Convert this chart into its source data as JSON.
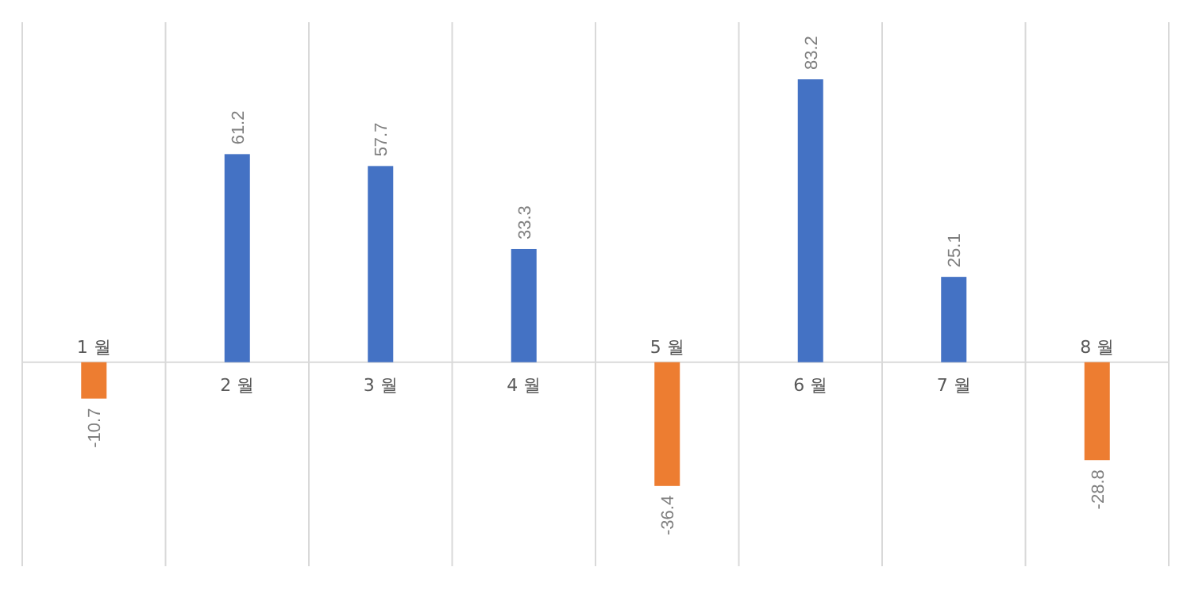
{
  "chart_data": {
    "type": "bar",
    "categories": [
      "1 월",
      "2 월",
      "3 월",
      "4 월",
      "5 월",
      "6 월",
      "7 월",
      "8 월"
    ],
    "values": [
      -10.7,
      61.2,
      57.7,
      33.3,
      -36.4,
      83.2,
      25.1,
      -28.8
    ],
    "colors": [
      "#ed7d31",
      "#4472c4",
      "#4472c4",
      "#4472c4",
      "#ed7d31",
      "#4472c4",
      "#4472c4",
      "#ed7d31"
    ],
    "ylim": [
      -60,
      100
    ],
    "grid": "x",
    "data_labels": true,
    "tick_labels": "x"
  }
}
